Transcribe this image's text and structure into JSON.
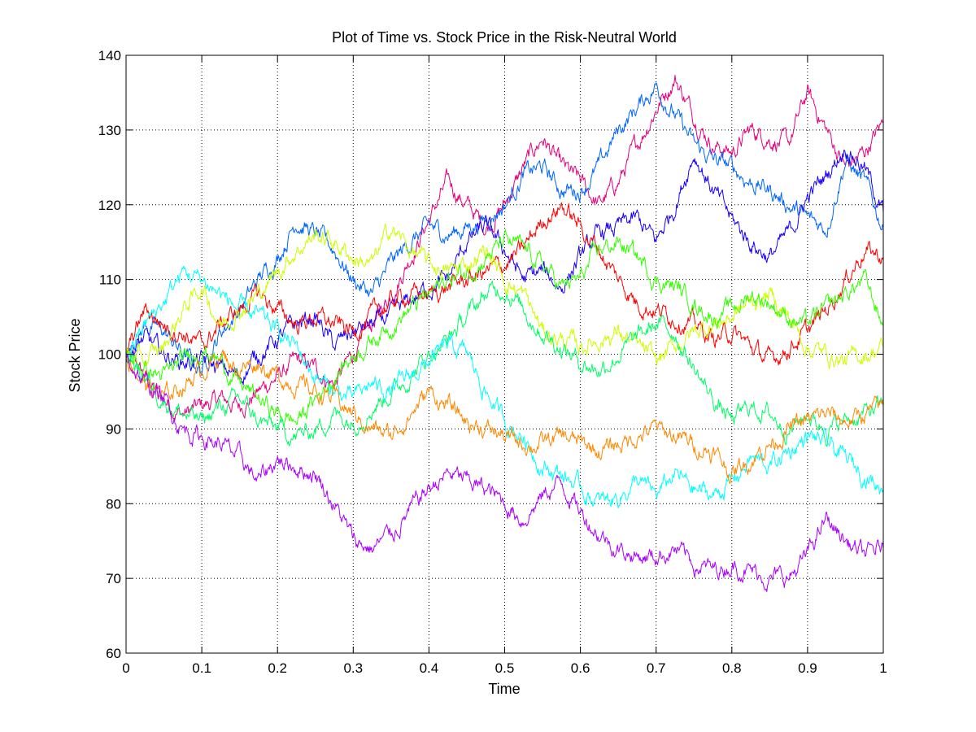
{
  "chart_data": {
    "type": "line",
    "title": "Plot of Time vs. Stock Price in the Risk-Neutral World",
    "xlabel": "Time",
    "ylabel": "Stock Price",
    "xlim": [
      0,
      1
    ],
    "ylim": [
      60,
      140
    ],
    "xticks": [
      "0",
      "0.1",
      "0.2",
      "0.3",
      "0.4",
      "0.5",
      "0.6",
      "0.7",
      "0.8",
      "0.9",
      "1"
    ],
    "yticks": [
      "60",
      "70",
      "80",
      "90",
      "100",
      "110",
      "120",
      "130",
      "140"
    ],
    "grid": true,
    "legend": "none",
    "x": [
      0,
      0.025,
      0.05,
      0.075,
      0.1,
      0.125,
      0.15,
      0.175,
      0.2,
      0.225,
      0.25,
      0.275,
      0.3,
      0.325,
      0.35,
      0.375,
      0.4,
      0.425,
      0.45,
      0.475,
      0.5,
      0.525,
      0.55,
      0.575,
      0.6,
      0.625,
      0.65,
      0.675,
      0.7,
      0.725,
      0.75,
      0.775,
      0.8,
      0.825,
      0.85,
      0.875,
      0.9,
      0.925,
      0.95,
      0.975,
      1
    ],
    "series": [
      {
        "color": "#e6007e",
        "values": [
          100,
          97,
          94,
          92,
          93,
          94,
          93,
          95,
          97,
          99,
          98,
          96,
          100,
          104,
          108,
          113,
          118,
          123,
          120,
          117,
          120,
          125,
          129,
          125,
          123,
          120,
          123,
          128,
          133,
          137,
          132,
          128,
          127,
          130,
          129,
          128,
          135,
          130,
          125,
          127,
          131
        ]
      },
      {
        "color": "#0066ff",
        "values": [
          100,
          104,
          103,
          100,
          98,
          103,
          106,
          110,
          113,
          118,
          116,
          114,
          110,
          108,
          112,
          115,
          117,
          116,
          117,
          118,
          120,
          124,
          125,
          122,
          122,
          125,
          130,
          133,
          136,
          132,
          128,
          126,
          125,
          123,
          122,
          120,
          118,
          117,
          126,
          123,
          117
        ]
      },
      {
        "color": "#1a00ff",
        "values": [
          100,
          102,
          100,
          99,
          99,
          98,
          97,
          100,
          102,
          104,
          105,
          101,
          103,
          104,
          105,
          107,
          109,
          110,
          115,
          117,
          114,
          110,
          111,
          109,
          113,
          116,
          117,
          118,
          115,
          120,
          127,
          122,
          118,
          115,
          113,
          116,
          121,
          124,
          128,
          125,
          119
        ]
      },
      {
        "color": "#ff0000",
        "values": [
          100,
          106,
          104,
          103,
          101,
          104,
          106,
          108,
          106,
          104,
          105,
          104,
          103,
          105,
          107,
          108,
          108,
          109,
          110,
          111,
          112,
          114,
          118,
          120,
          117,
          114,
          110,
          107,
          106,
          105,
          104,
          102,
          103,
          101,
          99,
          101,
          103,
          106,
          110,
          114,
          113
        ]
      },
      {
        "color": "#ccff00",
        "values": [
          100,
          99,
          101,
          106,
          109,
          104,
          106,
          108,
          111,
          114,
          116,
          115,
          113,
          112,
          117,
          114,
          112,
          111,
          112,
          114,
          110,
          108,
          103,
          102,
          101,
          102,
          103,
          101,
          99,
          101,
          103,
          104,
          105,
          107,
          108,
          105,
          101,
          100,
          99,
          100,
          101
        ]
      },
      {
        "color": "#33ff00",
        "values": [
          100,
          98,
          97,
          99,
          101,
          99,
          96,
          94,
          92,
          91,
          94,
          97,
          100,
          102,
          104,
          106,
          108,
          110,
          111,
          113,
          115,
          114,
          112,
          109,
          110,
          114,
          115,
          113,
          110,
          109,
          107,
          105,
          106,
          108,
          107,
          105,
          104,
          106,
          108,
          110,
          104
        ]
      },
      {
        "color": "#00ff66",
        "values": [
          100,
          97,
          94,
          92,
          91,
          93,
          94,
          91,
          90,
          89,
          90,
          92,
          91,
          93,
          95,
          97,
          100,
          102,
          105,
          108,
          109,
          106,
          103,
          101,
          99,
          98,
          100,
          102,
          104,
          103,
          98,
          94,
          91,
          93,
          92,
          90,
          92,
          90,
          91,
          92,
          93
        ]
      },
      {
        "color": "#00ffff",
        "values": [
          100,
          104,
          107,
          111,
          110,
          108,
          106,
          105,
          103,
          101,
          97,
          95,
          94,
          96,
          95,
          97,
          99,
          101,
          100,
          95,
          91,
          89,
          85,
          84,
          82,
          80,
          81,
          83,
          81,
          84,
          82,
          81,
          83,
          86,
          85,
          87,
          89,
          88,
          86,
          84,
          82
        ]
      },
      {
        "color": "#ff8800",
        "values": [
          100,
          96,
          94,
          96,
          98,
          100,
          98,
          99,
          97,
          96,
          95,
          94,
          92,
          90,
          89,
          92,
          95,
          93,
          91,
          90,
          89,
          88,
          88,
          89,
          88,
          87,
          88,
          89,
          90,
          89,
          88,
          87,
          84,
          86,
          88,
          90,
          91,
          92,
          91,
          92,
          93
        ]
      },
      {
        "color": "#aa00ff",
        "values": [
          100,
          96,
          94,
          90,
          89,
          88,
          86,
          83,
          86,
          85,
          84,
          80,
          75,
          74,
          76,
          79,
          82,
          84,
          83,
          82,
          80,
          78,
          81,
          83,
          79,
          76,
          74,
          73,
          73,
          74,
          72,
          71,
          72,
          71,
          70,
          70,
          73,
          78,
          75,
          73,
          74
        ]
      }
    ]
  }
}
